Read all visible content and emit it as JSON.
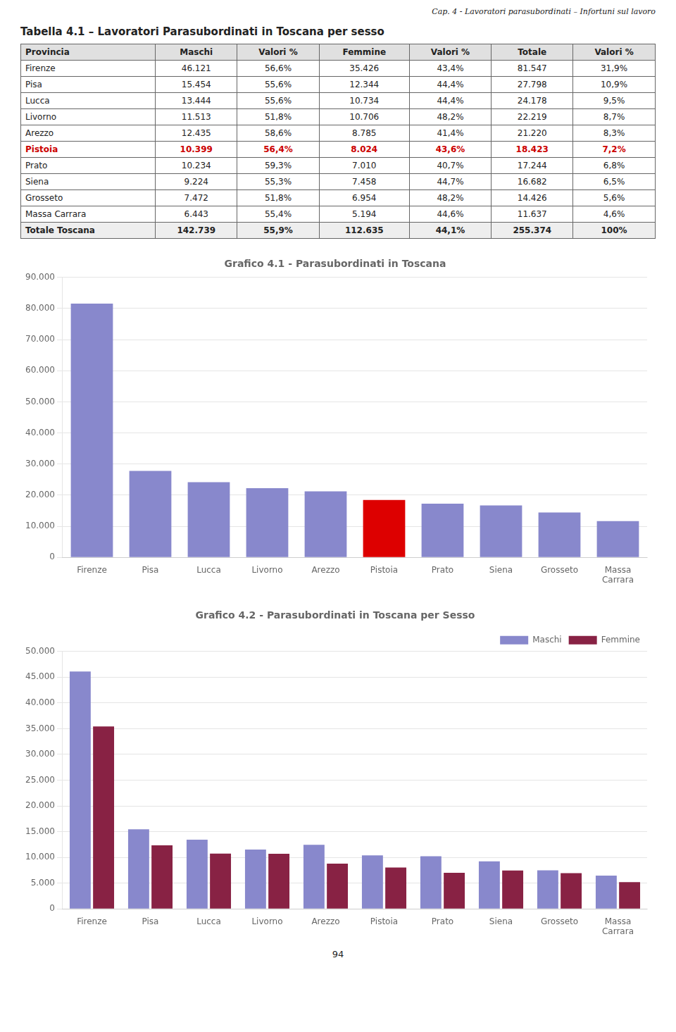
{
  "page_header": "Cap. 4 -  Lavoratori parasubordinati – Infortuni sul lavoro",
  "page_number": "94",
  "table": {
    "title": "Tabella  4.1 – Lavoratori Parasubordinati in Toscana per sesso",
    "headers": [
      "Provincia",
      "Maschi",
      "Valori %",
      "Femmine",
      "Valori %",
      "Totale",
      "Valori %"
    ],
    "rows": [
      [
        "Firenze",
        "46.121",
        "56,6%",
        "35.426",
        "43,4%",
        "81.547",
        "31,9%"
      ],
      [
        "Pisa",
        "15.454",
        "55,6%",
        "12.344",
        "44,4%",
        "27.798",
        "10,9%"
      ],
      [
        "Lucca",
        "13.444",
        "55,6%",
        "10.734",
        "44,4%",
        "24.178",
        "9,5%"
      ],
      [
        "Livorno",
        "11.513",
        "51,8%",
        "10.706",
        "48,2%",
        "22.219",
        "8,7%"
      ],
      [
        "Arezzo",
        "12.435",
        "58,6%",
        "8.785",
        "41,4%",
        "21.220",
        "8,3%"
      ],
      [
        "Pistoia",
        "10.399",
        "56,4%",
        "8.024",
        "43,6%",
        "18.423",
        "7,2%"
      ],
      [
        "Prato",
        "10.234",
        "59,3%",
        "7.010",
        "40,7%",
        "17.244",
        "6,8%"
      ],
      [
        "Siena",
        "9.224",
        "55,3%",
        "7.458",
        "44,7%",
        "16.682",
        "6,5%"
      ],
      [
        "Grosseto",
        "7.472",
        "51,8%",
        "6.954",
        "48,2%",
        "14.426",
        "5,6%"
      ],
      [
        "Massa Carrara",
        "6.443",
        "55,4%",
        "5.194",
        "44,6%",
        "11.637",
        "4,6%"
      ],
      [
        "Totale Toscana",
        "142.739",
        "55,9%",
        "112.635",
        "44,1%",
        "255.374",
        "100%"
      ]
    ],
    "highlight": {
      "row": "Pistoia",
      "color": "#cc0000"
    }
  },
  "chart_data": [
    {
      "type": "bar",
      "title": "Grafico 4.1 - Parasubordinati in Toscana",
      "categories": [
        "Firenze",
        "Pisa",
        "Lucca",
        "Livorno",
        "Arezzo",
        "Pistoia",
        "Prato",
        "Siena",
        "Grosseto",
        "Massa\nCarrara"
      ],
      "values": [
        81547,
        27798,
        24178,
        22219,
        21220,
        18423,
        17244,
        16682,
        14426,
        11637
      ],
      "colors": [
        "#8888cc",
        "#8888cc",
        "#8888cc",
        "#8888cc",
        "#8888cc",
        "#dd0000",
        "#8888cc",
        "#8888cc",
        "#8888cc",
        "#8888cc"
      ],
      "ylim": [
        0,
        90000
      ],
      "yticks": [
        0,
        {
          "value": 10000,
          "label": "10.000"
        },
        {
          "value": 20000,
          "label": "20.000"
        },
        {
          "value": 30000,
          "label": "30.000"
        },
        {
          "value": 40000,
          "label": "40.000"
        },
        {
          "value": 50000,
          "label": "50.000"
        },
        {
          "value": 60000,
          "label": "60.000"
        },
        {
          "value": 70000,
          "label": "70.000"
        },
        {
          "value": 80000,
          "label": "80.000"
        },
        {
          "value": 90000,
          "label": "90.000"
        }
      ],
      "grid": true
    },
    {
      "type": "bar",
      "title": "Grafico 4.2 - Parasubordinati in Toscana per Sesso",
      "categories": [
        "Firenze",
        "Pisa",
        "Lucca",
        "Livorno",
        "Arezzo",
        "Pistoia",
        "Prato",
        "Siena",
        "Grosseto",
        "Massa\nCarrara"
      ],
      "series": [
        {
          "name": "Maschi",
          "color": "#8888cc",
          "values": [
            46121,
            15454,
            13444,
            11513,
            12435,
            10399,
            10234,
            9224,
            7472,
            6443
          ]
        },
        {
          "name": "Femmine",
          "color": "#882244",
          "values": [
            35426,
            12344,
            10734,
            10706,
            8785,
            8024,
            7010,
            7458,
            6954,
            5194
          ]
        }
      ],
      "ylim": [
        0,
        50000
      ],
      "yticks": [
        0,
        {
          "value": 5000,
          "label": "5.000"
        },
        {
          "value": 10000,
          "label": "10.000"
        },
        {
          "value": 15000,
          "label": "15.000"
        },
        {
          "value": 20000,
          "label": "20.000"
        },
        {
          "value": 25000,
          "label": "25.000"
        },
        {
          "value": 30000,
          "label": "30.000"
        },
        {
          "value": 35000,
          "label": "35.000"
        },
        {
          "value": 40000,
          "label": "40.000"
        },
        {
          "value": 45000,
          "label": "45.000"
        },
        {
          "value": 50000,
          "label": "50.000"
        }
      ],
      "grid": true,
      "legend": "upper right"
    }
  ]
}
